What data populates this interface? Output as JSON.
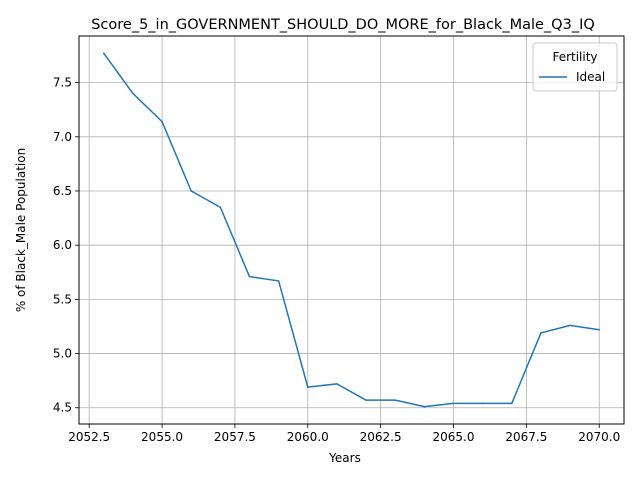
{
  "chart_data": {
    "type": "line",
    "title": "Score_5_in_GOVERNMENT_SHOULD_DO_MORE_for_Black_Male_Q3_IQ",
    "xlabel": "Years",
    "ylabel": "% of Black_Male Population",
    "xlim": [
      2052.15,
      2070.85
    ],
    "ylim": [
      4.35,
      7.93
    ],
    "xticks": [
      2052.5,
      2055.0,
      2057.5,
      2060.0,
      2062.5,
      2065.0,
      2067.5,
      2070.0
    ],
    "xtick_labels": [
      "2052.5",
      "2055.0",
      "2057.5",
      "2060.0",
      "2062.5",
      "2065.0",
      "2067.5",
      "2070.0"
    ],
    "yticks": [
      4.5,
      5.0,
      5.5,
      6.0,
      6.5,
      7.0,
      7.5
    ],
    "ytick_labels": [
      "4.5",
      "5.0",
      "5.5",
      "6.0",
      "6.5",
      "7.0",
      "7.5"
    ],
    "grid": true,
    "legend": {
      "title": "Fertility",
      "placement": "top-right"
    },
    "series": [
      {
        "name": "Ideal",
        "color": "#1f77b4",
        "x": [
          2053,
          2054,
          2055,
          2056,
          2057,
          2058,
          2059,
          2060,
          2061,
          2062,
          2063,
          2064,
          2065,
          2066,
          2067,
          2068,
          2069,
          2070
        ],
        "y": [
          7.77,
          7.4,
          7.14,
          6.5,
          6.35,
          5.71,
          5.67,
          4.69,
          4.72,
          4.57,
          4.57,
          4.51,
          4.54,
          4.54,
          4.54,
          5.19,
          5.26,
          5.22
        ]
      }
    ]
  }
}
